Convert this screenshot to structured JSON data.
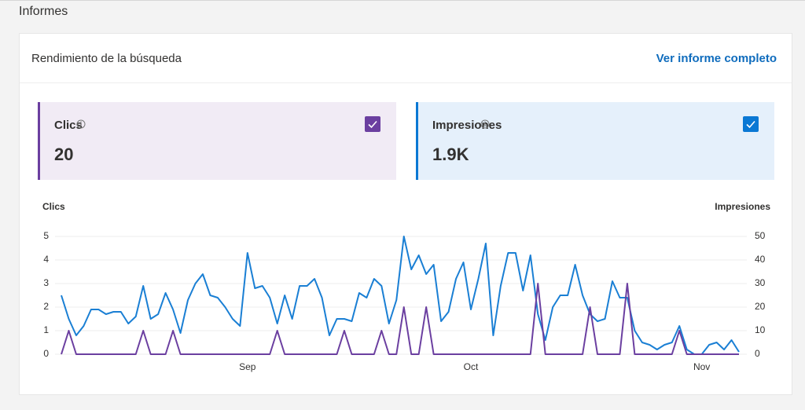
{
  "header": {
    "title": "Informes"
  },
  "card": {
    "title": "Rendimiento de la búsqueda",
    "link": "Ver informe completo"
  },
  "metrics": [
    {
      "label": "Clics",
      "value": "20",
      "color": "#6b3fa0",
      "background": "#f1ebf5",
      "checked": true
    },
    {
      "label": "Impresiones",
      "value": "1.9K",
      "color": "#0a78d4",
      "background": "#e5f0fb",
      "checked": true
    }
  ],
  "chart_data": {
    "type": "line",
    "categories": [
      null,
      null,
      null,
      null,
      null,
      null,
      null,
      null,
      null,
      null,
      null,
      null,
      null,
      null,
      null,
      null,
      null,
      null,
      null,
      null,
      null,
      null,
      null,
      null,
      null,
      "Sep",
      null,
      null,
      null,
      null,
      null,
      null,
      null,
      null,
      null,
      null,
      null,
      null,
      null,
      null,
      null,
      null,
      null,
      null,
      null,
      null,
      null,
      null,
      null,
      null,
      null,
      null,
      null,
      null,
      null,
      "Oct",
      null,
      null,
      null,
      null,
      null,
      null,
      null,
      null,
      null,
      null,
      null,
      null,
      null,
      null,
      null,
      null,
      null,
      null,
      null,
      null,
      null,
      null,
      null,
      null,
      null,
      null,
      null,
      null,
      null,
      null,
      "Nov",
      null,
      null,
      null,
      null,
      null
    ],
    "series": [
      {
        "name": "Clics",
        "color": "#6b3fa0",
        "axis": "y",
        "values": [
          0,
          1,
          0,
          0,
          0,
          0,
          0,
          0,
          0,
          0,
          0,
          1,
          0,
          0,
          0,
          1,
          0,
          0,
          0,
          0,
          0,
          0,
          0,
          0,
          0,
          0,
          0,
          0,
          0,
          1,
          0,
          0,
          0,
          0,
          0,
          0,
          0,
          0,
          1,
          0,
          0,
          0,
          0,
          1,
          0,
          0,
          2,
          0,
          0,
          2,
          0,
          0,
          0,
          0,
          0,
          0,
          0,
          0,
          0,
          0,
          0,
          0,
          0,
          0,
          3,
          0,
          0,
          0,
          0,
          0,
          0,
          2,
          0,
          0,
          0,
          0,
          3,
          0,
          0,
          0,
          0,
          0,
          0,
          1,
          0,
          0,
          0,
          0,
          0,
          0,
          0,
          0
        ]
      },
      {
        "name": "Impresiones",
        "color": "#1a7fd4",
        "axis": "y2",
        "values": [
          25,
          15,
          8,
          12,
          19,
          19,
          17,
          18,
          18,
          13,
          16,
          29,
          15,
          17,
          26,
          19,
          9,
          23,
          30,
          34,
          25,
          24,
          20,
          15,
          12,
          43,
          28,
          29,
          24,
          13,
          25,
          15,
          29,
          29,
          32,
          24,
          8,
          15,
          15,
          14,
          26,
          24,
          32,
          29,
          13,
          23,
          50,
          36,
          42,
          34,
          38,
          14,
          18,
          32,
          39,
          19,
          32,
          47,
          8,
          29,
          43,
          43,
          27,
          42,
          17,
          6,
          20,
          25,
          25,
          38,
          25,
          17,
          14,
          15,
          31,
          24,
          24,
          10,
          5,
          4,
          2,
          4,
          5,
          12,
          2,
          0,
          0,
          4,
          5,
          2,
          6,
          1
        ]
      }
    ],
    "ylim": [
      0,
      5
    ],
    "yticks": [
      0,
      1,
      2,
      3,
      4,
      5
    ],
    "y2lim": [
      0,
      50
    ],
    "y2ticks": [
      0,
      10,
      20,
      30,
      40,
      50
    ],
    "grid": true
  }
}
